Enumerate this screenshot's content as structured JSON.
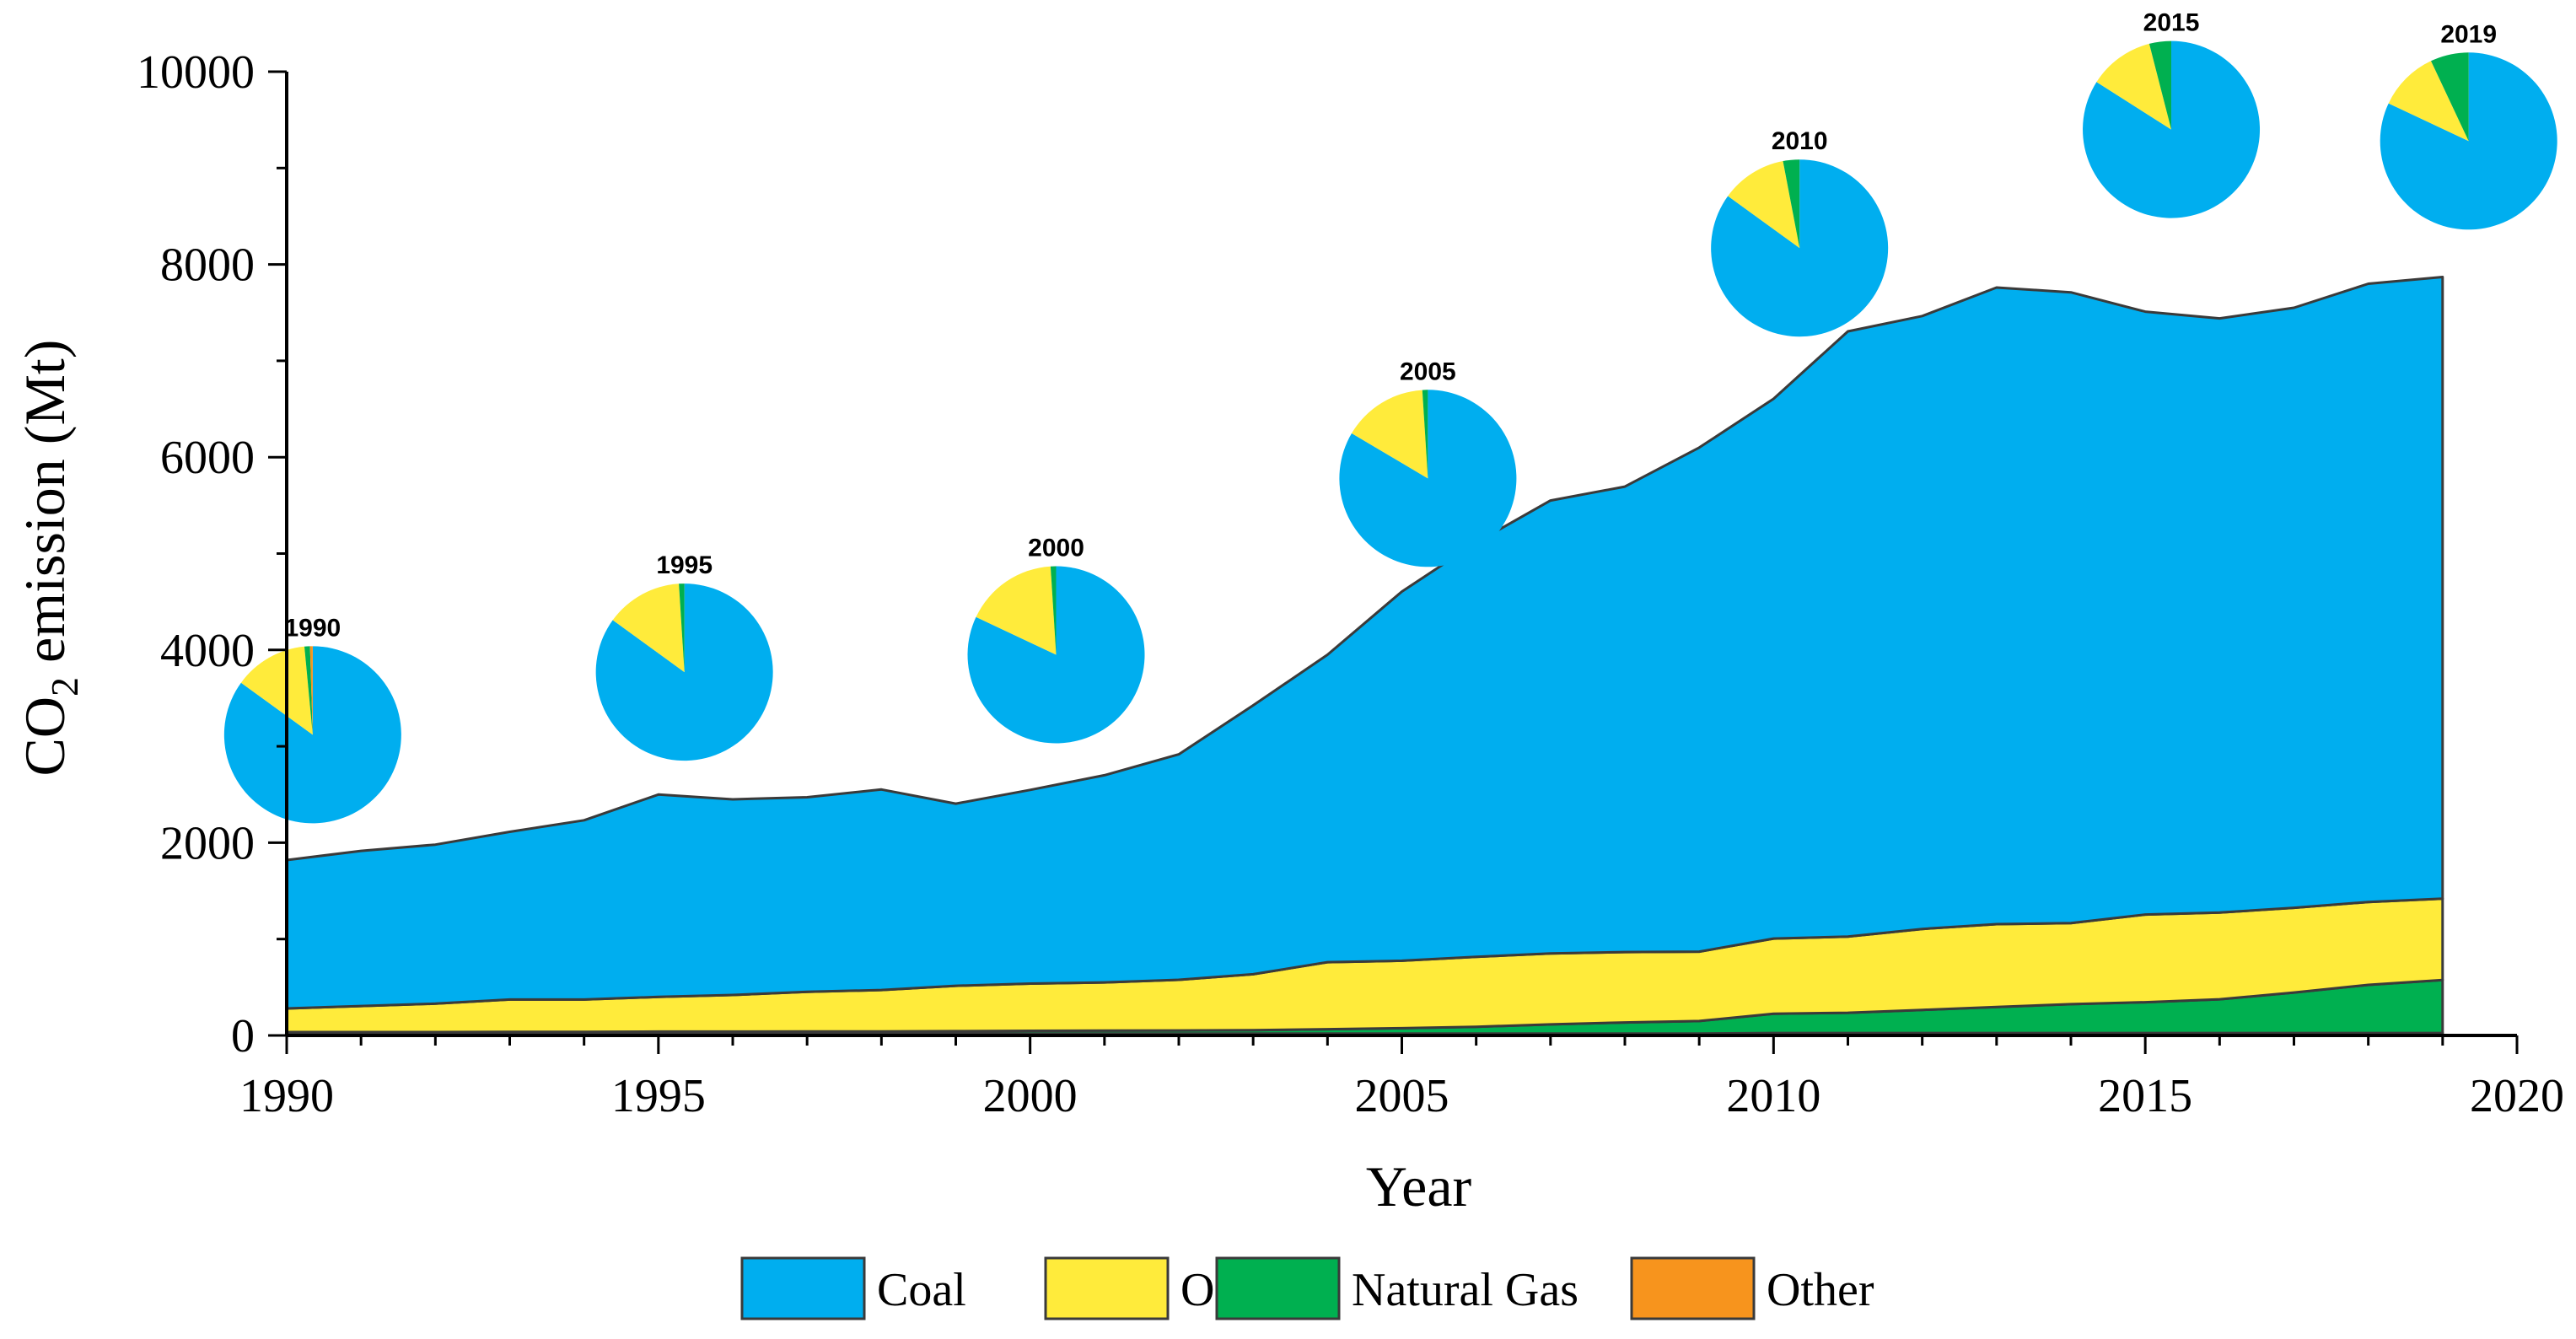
{
  "chart_data": {
    "type": "area",
    "stacked": true,
    "title": "",
    "xlabel": "Year",
    "ylabel": "CO",
    "ylabel_sub": "2",
    "ylabel_suffix": " emission (Mt)",
    "xlim": [
      1990,
      2020
    ],
    "ylim": [
      0,
      10000
    ],
    "x_ticks": [
      "1990",
      "1995",
      "2000",
      "2005",
      "2010",
      "2015",
      "2020"
    ],
    "y_ticks": [
      "0",
      "2000",
      "4000",
      "6000",
      "8000",
      "10000"
    ],
    "x": [
      1990,
      1991,
      1992,
      1993,
      1994,
      1995,
      1996,
      1997,
      1998,
      1999,
      2000,
      2001,
      2002,
      2003,
      2004,
      2005,
      2006,
      2007,
      2008,
      2009,
      2010,
      2011,
      2012,
      2013,
      2014,
      2015,
      2016,
      2017,
      2018,
      2019
    ],
    "series": [
      {
        "name": "Other",
        "color": "#F7941D",
        "values": [
          20,
          20,
          20,
          20,
          20,
          20,
          20,
          20,
          20,
          20,
          20,
          20,
          20,
          20,
          20,
          20,
          20,
          20,
          20,
          20,
          25,
          25,
          25,
          25,
          25,
          25,
          25,
          25,
          25,
          25
        ]
      },
      {
        "name": "Natural Gas",
        "color": "#00B050",
        "values": [
          15,
          15,
          15,
          18,
          18,
          20,
          20,
          22,
          22,
          25,
          28,
          30,
          32,
          35,
          45,
          55,
          70,
          95,
          115,
          130,
          200,
          210,
          240,
          270,
          300,
          320,
          350,
          420,
          500,
          550
        ]
      },
      {
        "name": "Oil",
        "color": "#FFEB3B",
        "values": [
          245,
          270,
          295,
          335,
          335,
          360,
          380,
          410,
          430,
          470,
          490,
          500,
          525,
          580,
          695,
          700,
          725,
          735,
          730,
          720,
          780,
          790,
          840,
          860,
          840,
          910,
          900,
          880,
          860,
          845
        ]
      },
      {
        "name": "Coal",
        "color": "#00AEEF",
        "values": [
          1540,
          1610,
          1650,
          1740,
          1860,
          2100,
          2030,
          2020,
          2080,
          1890,
          2010,
          2150,
          2340,
          2790,
          3190,
          3830,
          4300,
          4700,
          4830,
          5230,
          5600,
          6280,
          6360,
          6605,
          6545,
          6255,
          6165,
          6225,
          6415,
          6450
        ]
      }
    ],
    "totals": [
      1820,
      1915,
      1980,
      2113,
      2233,
      2500,
      2450,
      2472,
      2552,
      2405,
      2548,
      2700,
      2917,
      3425,
      3950,
      4605,
      5115,
      5550,
      5695,
      6100,
      6605,
      7305,
      7465,
      7760,
      7710,
      7510,
      7440,
      7550,
      7800,
      7870
    ],
    "pies": [
      {
        "label": "1990",
        "year": 1990,
        "center_value": 3120,
        "shares": {
          "Coal": 0.85,
          "Oil": 0.135,
          "Natural Gas": 0.01,
          "Other": 0.005
        }
      },
      {
        "label": "1995",
        "year": 1995,
        "center_value": 3770,
        "shares": {
          "Coal": 0.85,
          "Oil": 0.14,
          "Natural Gas": 0.01,
          "Other": 0.0
        }
      },
      {
        "label": "2000",
        "year": 2000,
        "center_value": 3950,
        "shares": {
          "Coal": 0.82,
          "Oil": 0.17,
          "Natural Gas": 0.01,
          "Other": 0.0
        }
      },
      {
        "label": "2005",
        "year": 2005,
        "center_value": 5780,
        "shares": {
          "Coal": 0.835,
          "Oil": 0.155,
          "Natural Gas": 0.01,
          "Other": 0.0
        }
      },
      {
        "label": "2010",
        "year": 2010,
        "center_value": 8170,
        "shares": {
          "Coal": 0.85,
          "Oil": 0.12,
          "Natural Gas": 0.03,
          "Other": 0.0
        }
      },
      {
        "label": "2015",
        "year": 2015,
        "center_value": 9400,
        "shares": {
          "Coal": 0.84,
          "Oil": 0.12,
          "Natural Gas": 0.04,
          "Other": 0.0
        }
      },
      {
        "label": "2019",
        "year": 2019,
        "center_value": 9280,
        "shares": {
          "Coal": 0.82,
          "Oil": 0.11,
          "Natural Gas": 0.07,
          "Other": 0.0
        }
      }
    ],
    "legend": [
      "Coal",
      "Oil",
      "Natural Gas",
      "Other"
    ],
    "legend_position": "bottom-center",
    "grid": false
  }
}
